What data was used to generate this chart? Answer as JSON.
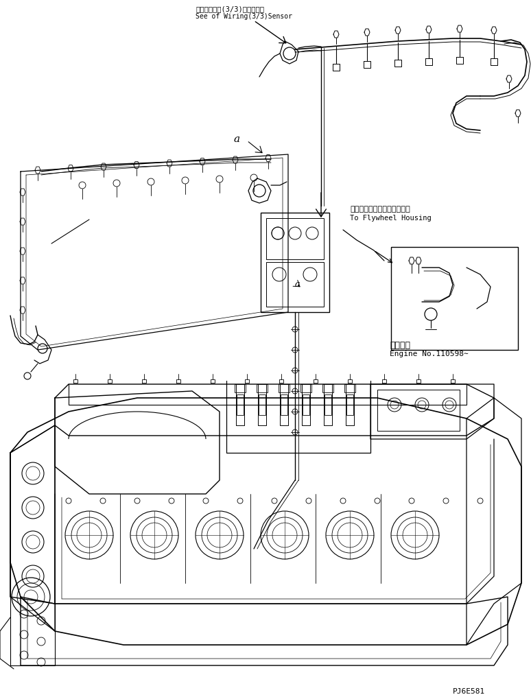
{
  "figure_width": 7.74,
  "figure_height": 10.16,
  "dpi": 100,
  "bg_color": "#ffffff",
  "annotation_top_ja": "ワイヤリング(3/3)センサ参照",
  "annotation_top_en": "See of Wiring(3/3)Sensor",
  "annotation_flywheel_ja": "フライホイールハウジングへ",
  "annotation_flywheel_en": "To Flywheel Housing",
  "annotation_engine_ja": "適用号機",
  "annotation_engine_en": "Engine No.110598∼",
  "label_a1": "a",
  "label_a2": "a",
  "watermark": "PJ6E581",
  "line_color": "#000000"
}
